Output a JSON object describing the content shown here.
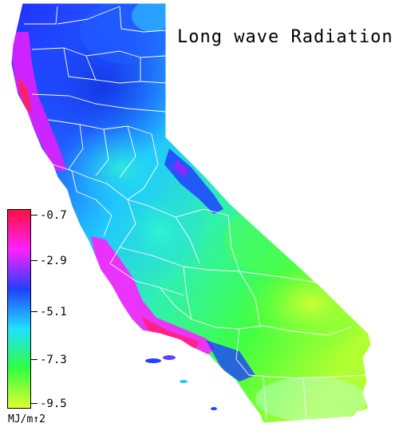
{
  "map": {
    "title": "Long wave Radiation",
    "region": "California",
    "overlay": "county boundaries",
    "background_color": "#ffffff",
    "boundary_color": "#ffffff"
  },
  "legend": {
    "units": "MJ/m↑2",
    "ticks": [
      "-0.7",
      "-2.9",
      "-5.1",
      "-7.3",
      "-9.5"
    ],
    "colors": [
      "#ff1040",
      "#ff20ff",
      "#2040ff",
      "#20e0ff",
      "#30ff40",
      "#e0ff30"
    ],
    "value_max": -0.7,
    "value_min": -9.5
  }
}
